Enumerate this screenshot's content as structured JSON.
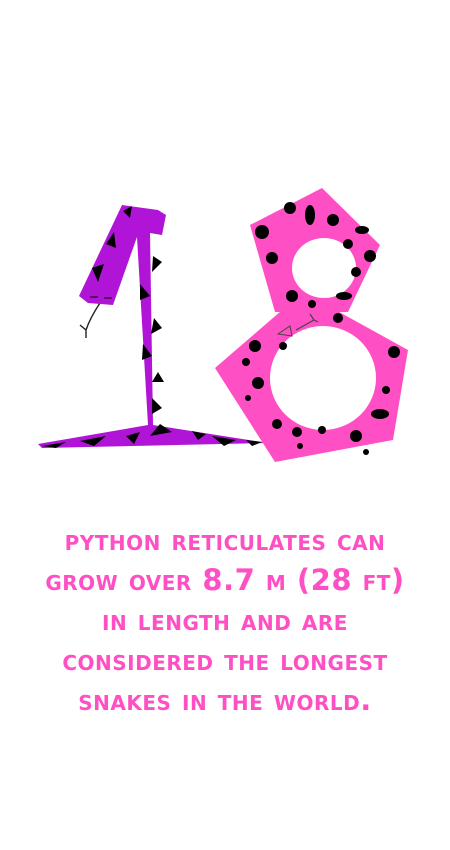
{
  "illustration": {
    "digits": "18",
    "digit_one_color": "#b014d6",
    "digit_eight_color": "#ff4fc4",
    "pattern_color": "#000000"
  },
  "caption": {
    "color": "#ff4fc4",
    "lines": [
      "PYTHON RETICULATES CAN",
      "GROW OVER 8.7 M (28 FT)",
      "IN LENGTH AND ARE",
      "CONSIDERED THE LONGEST",
      "SNAKES IN THE WORLD."
    ]
  }
}
